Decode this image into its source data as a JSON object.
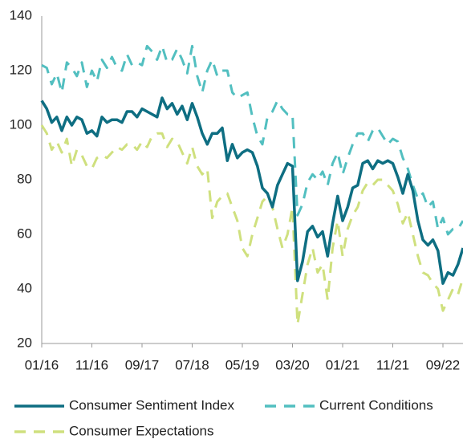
{
  "chart_data": {
    "type": "line",
    "categories": [
      "01/16",
      null,
      null,
      null,
      null,
      null,
      null,
      null,
      null,
      null,
      "11/16",
      null,
      null,
      null,
      null,
      null,
      null,
      null,
      null,
      null,
      "09/17",
      null,
      null,
      null,
      null,
      null,
      null,
      null,
      null,
      null,
      "07/18",
      null,
      null,
      null,
      null,
      null,
      null,
      null,
      null,
      null,
      "05/19",
      null,
      null,
      null,
      null,
      null,
      null,
      null,
      null,
      null,
      "03/20",
      null,
      null,
      null,
      null,
      null,
      null,
      null,
      null,
      null,
      "01/21",
      null,
      null,
      null,
      null,
      null,
      null,
      null,
      null,
      null,
      "11/21",
      null,
      null,
      null,
      null,
      null,
      null,
      null,
      null,
      null,
      "09/22",
      null,
      null,
      null,
      null
    ],
    "series": [
      {
        "name": "Consumer Sentiment Index",
        "color": "#0e6e82",
        "dash": false,
        "values": [
          109,
          106,
          101,
          103,
          98,
          103,
          100,
          103,
          102,
          97,
          98,
          96,
          103,
          101,
          102,
          102,
          101,
          105,
          105,
          103,
          106,
          105,
          104,
          103,
          110,
          106,
          108,
          104,
          107,
          102,
          108,
          103,
          97,
          93,
          97,
          97,
          99,
          87,
          93,
          88,
          90,
          91,
          90,
          85,
          77,
          75,
          70,
          78,
          82,
          86,
          85,
          43,
          50,
          61,
          63,
          59,
          61,
          52,
          64,
          74,
          65,
          70,
          77,
          78,
          86,
          87,
          84,
          87,
          86,
          87,
          86,
          81,
          75,
          82,
          76,
          65,
          58,
          56,
          58,
          54,
          42,
          46,
          45,
          49,
          55
        ]
      },
      {
        "name": "Current Conditions",
        "color": "#52bfc0",
        "dash": true,
        "values": [
          122,
          121,
          115,
          119,
          112,
          123,
          121,
          118,
          123,
          114,
          120,
          116,
          124,
          121,
          125,
          121,
          120,
          126,
          122,
          123,
          122,
          129,
          127,
          124,
          129,
          123,
          124,
          128,
          124,
          119,
          129,
          118,
          112,
          120,
          124,
          118,
          120,
          120,
          112,
          110,
          111,
          112,
          103,
          96,
          93,
          103,
          105,
          109,
          106,
          104,
          104,
          67,
          71,
          79,
          82,
          80,
          83,
          78,
          86,
          90,
          82,
          88,
          93,
          97,
          97,
          94,
          98,
          99,
          96,
          93,
          95,
          94,
          88,
          84,
          78,
          73,
          75,
          70,
          72,
          62,
          66,
          60,
          62,
          62,
          65
        ]
      },
      {
        "name": "Consumer Expectations",
        "color": "#cfe07e",
        "dash": true,
        "values": [
          100,
          97,
          91,
          94,
          90,
          95,
          85,
          91,
          89,
          85,
          84,
          88,
          89,
          88,
          90,
          92,
          91,
          93,
          93,
          91,
          94,
          92,
          96,
          97,
          97,
          92,
          95,
          94,
          90,
          86,
          92,
          85,
          82,
          84,
          66,
          72,
          74,
          75,
          70,
          65,
          55,
          52,
          60,
          66,
          72,
          74,
          70,
          62,
          55,
          60,
          70,
          27,
          38,
          49,
          55,
          46,
          49,
          36,
          55,
          65,
          52,
          62,
          67,
          70,
          76,
          79,
          78,
          80,
          80,
          78,
          76,
          71,
          64,
          68,
          60,
          52,
          46,
          45,
          42,
          40,
          32,
          36,
          40,
          38,
          44
        ]
      }
    ],
    "ylim": [
      20,
      140
    ],
    "yticks": [
      20,
      40,
      60,
      80,
      100,
      120,
      140
    ]
  }
}
